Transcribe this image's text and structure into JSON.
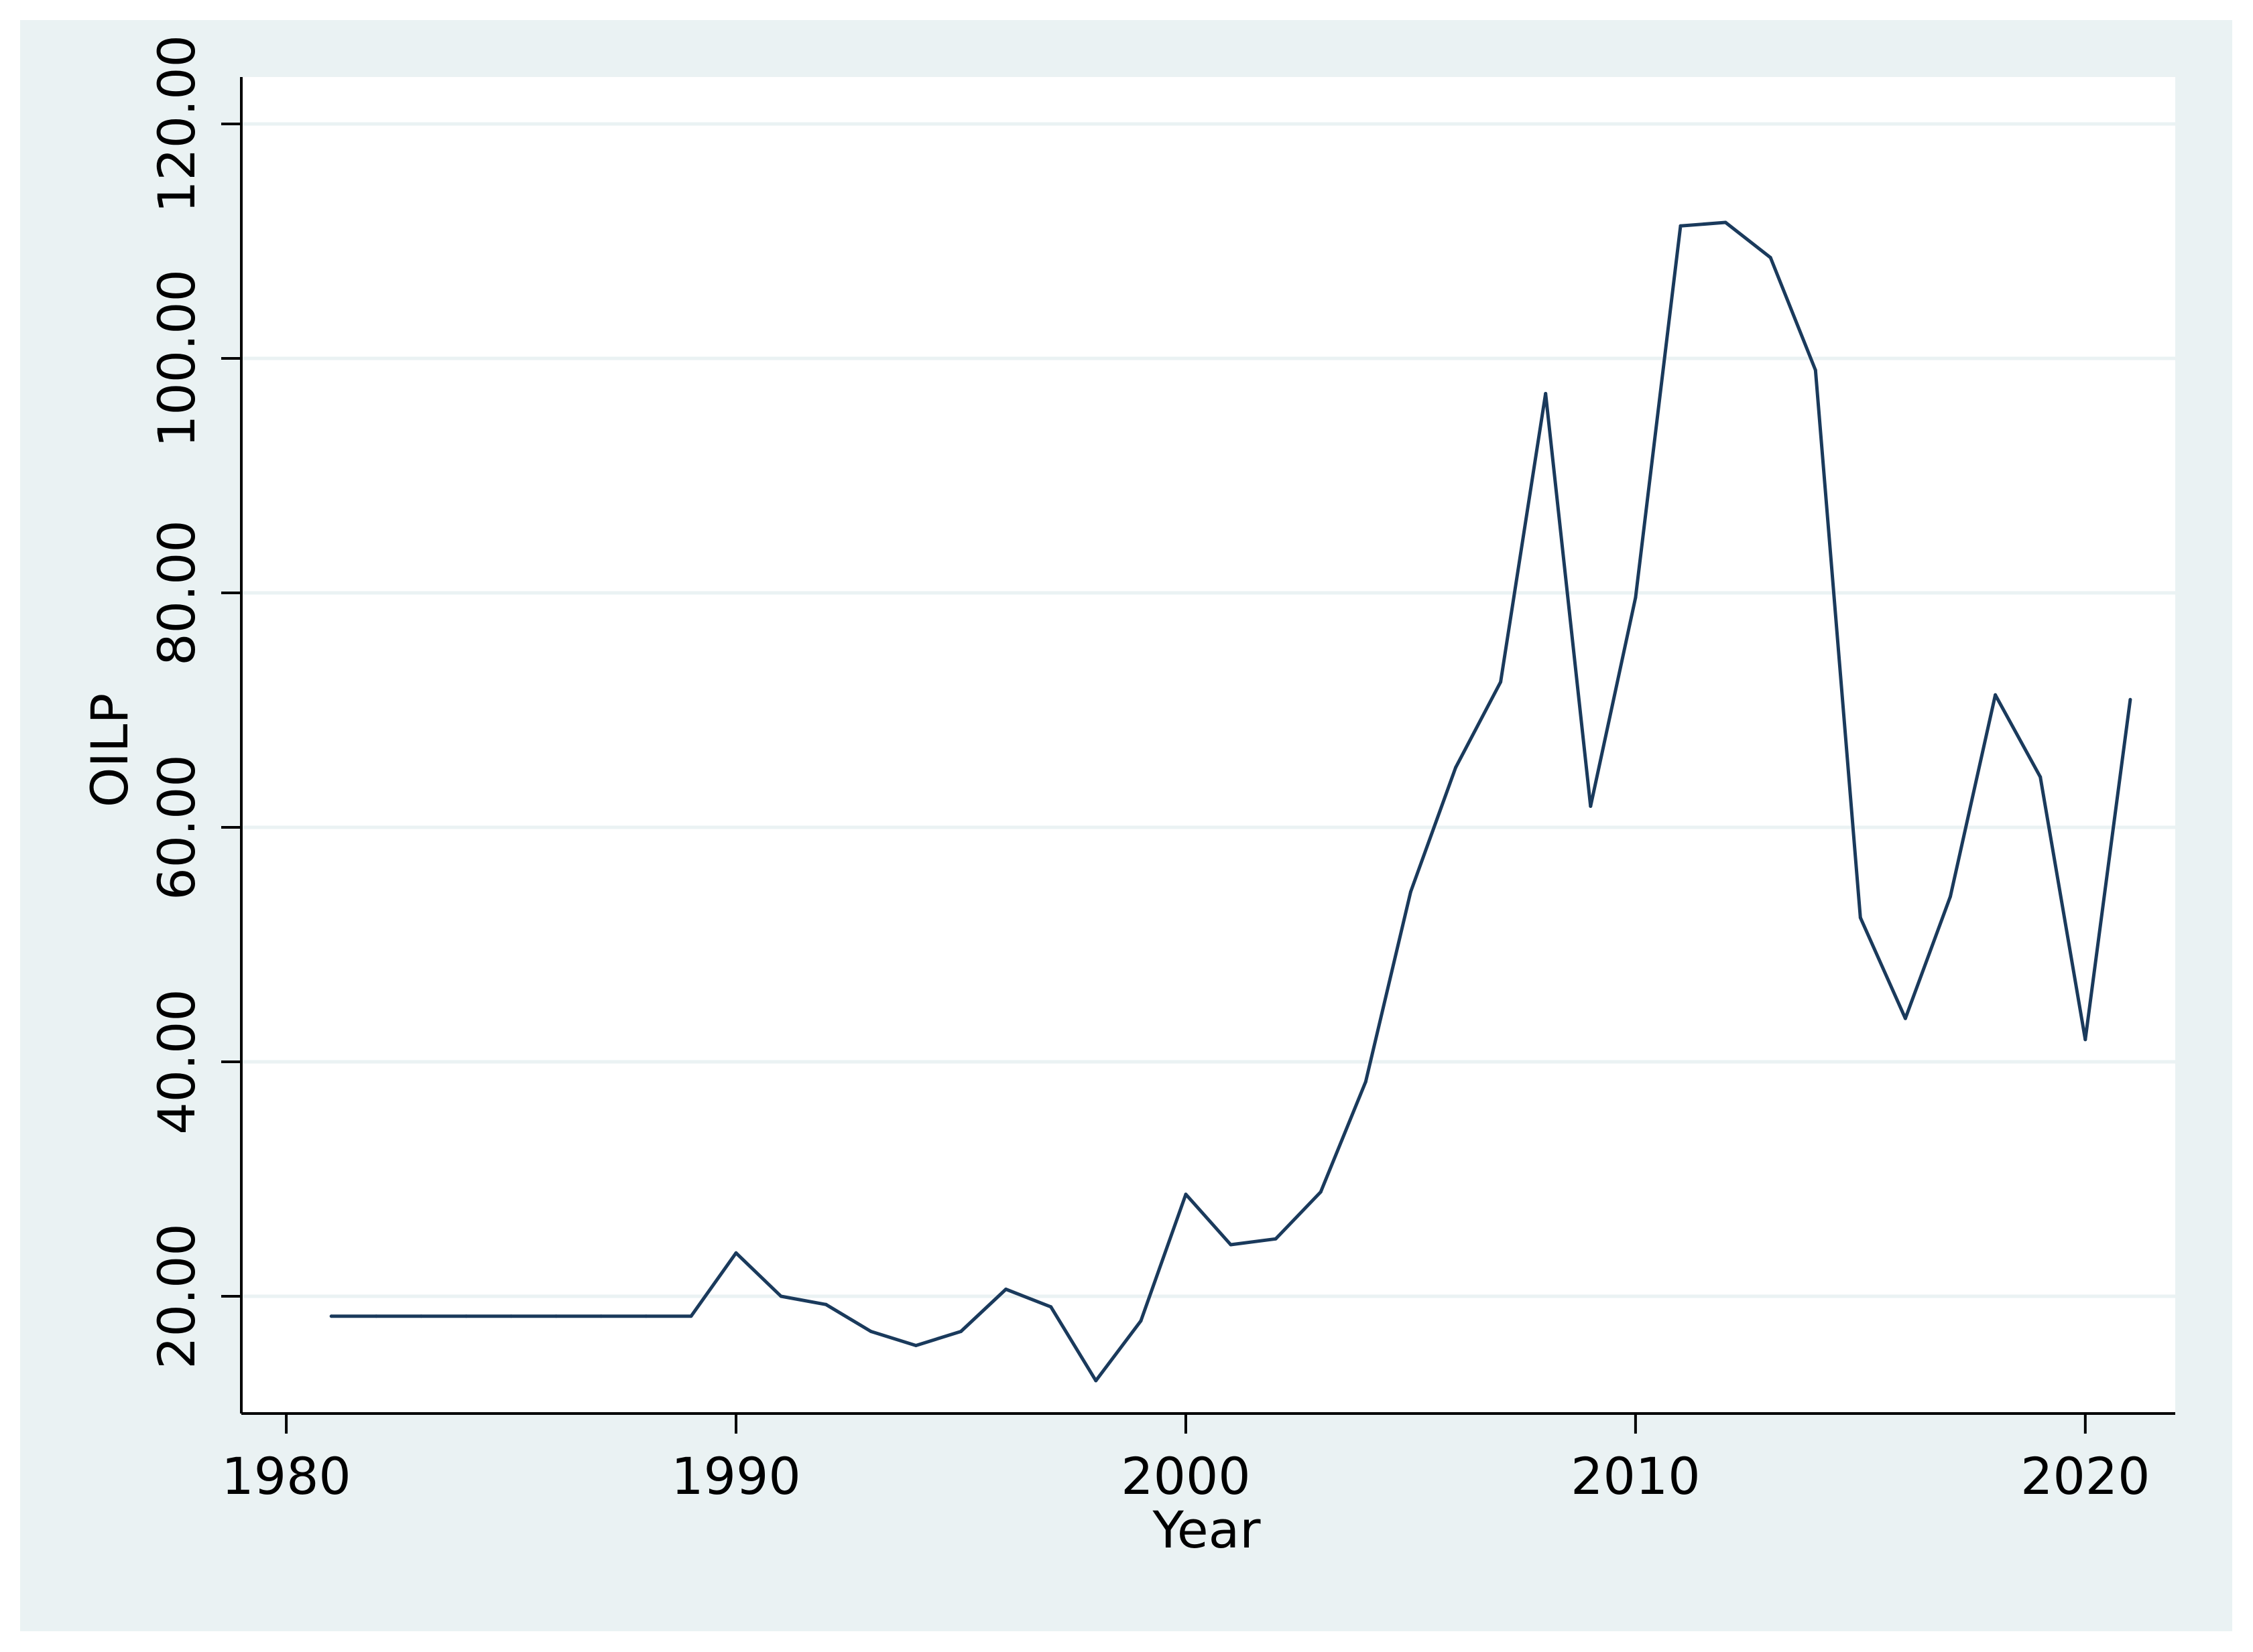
{
  "chart_data": {
    "type": "line",
    "title": "",
    "xlabel": "Year",
    "ylabel": "OILP",
    "xlim": [
      1979,
      2022
    ],
    "ylim": [
      10,
      124
    ],
    "x_ticks": [
      1980,
      1990,
      2000,
      2010,
      2020
    ],
    "x_tick_labels": [
      "1980",
      "1990",
      "2000",
      "2010",
      "2020"
    ],
    "y_ticks": [
      20,
      40,
      60,
      80,
      100,
      120
    ],
    "y_tick_labels": [
      "20.00",
      "40.00",
      "60.00",
      "80.00",
      "100.00",
      "120.00"
    ],
    "grid": "horizontal",
    "legend": "none",
    "series": [
      {
        "color": "#1a3a5c",
        "points": [
          {
            "x": 1981,
            "y": 18.3
          },
          {
            "x": 1982,
            "y": 18.3
          },
          {
            "x": 1983,
            "y": 18.3
          },
          {
            "x": 1984,
            "y": 18.3
          },
          {
            "x": 1985,
            "y": 18.3
          },
          {
            "x": 1986,
            "y": 18.3
          },
          {
            "x": 1987,
            "y": 18.3
          },
          {
            "x": 1988,
            "y": 18.3
          },
          {
            "x": 1989,
            "y": 18.3
          },
          {
            "x": 1990,
            "y": 23.7
          },
          {
            "x": 1991,
            "y": 20.0
          },
          {
            "x": 1992,
            "y": 19.3
          },
          {
            "x": 1993,
            "y": 17.0
          },
          {
            "x": 1994,
            "y": 15.8
          },
          {
            "x": 1995,
            "y": 17.0
          },
          {
            "x": 1996,
            "y": 20.6
          },
          {
            "x": 1997,
            "y": 19.1
          },
          {
            "x": 1998,
            "y": 12.8
          },
          {
            "x": 1999,
            "y": 17.9
          },
          {
            "x": 2000,
            "y": 28.7
          },
          {
            "x": 2001,
            "y": 24.4
          },
          {
            "x": 2002,
            "y": 24.9
          },
          {
            "x": 2003,
            "y": 28.9
          },
          {
            "x": 2004,
            "y": 38.3
          },
          {
            "x": 2005,
            "y": 54.5
          },
          {
            "x": 2006,
            "y": 65.1
          },
          {
            "x": 2007,
            "y": 72.4
          },
          {
            "x": 2008,
            "y": 97.0
          },
          {
            "x": 2009,
            "y": 61.8
          },
          {
            "x": 2010,
            "y": 79.6
          },
          {
            "x": 2011,
            "y": 111.3
          },
          {
            "x": 2012,
            "y": 111.6
          },
          {
            "x": 2013,
            "y": 108.6
          },
          {
            "x": 2014,
            "y": 99.0
          },
          {
            "x": 2015,
            "y": 52.3
          },
          {
            "x": 2016,
            "y": 43.7
          },
          {
            "x": 2017,
            "y": 54.1
          },
          {
            "x": 2018,
            "y": 71.3
          },
          {
            "x": 2019,
            "y": 64.3
          },
          {
            "x": 2020,
            "y": 41.9
          },
          {
            "x": 2021,
            "y": 70.9
          }
        ]
      }
    ]
  },
  "colors": {
    "outer_background": "#eaf2f3",
    "plot_background": "#ffffff",
    "grid": "#eaf2f3",
    "axis": "#000000",
    "line": "#1a3a5c"
  }
}
